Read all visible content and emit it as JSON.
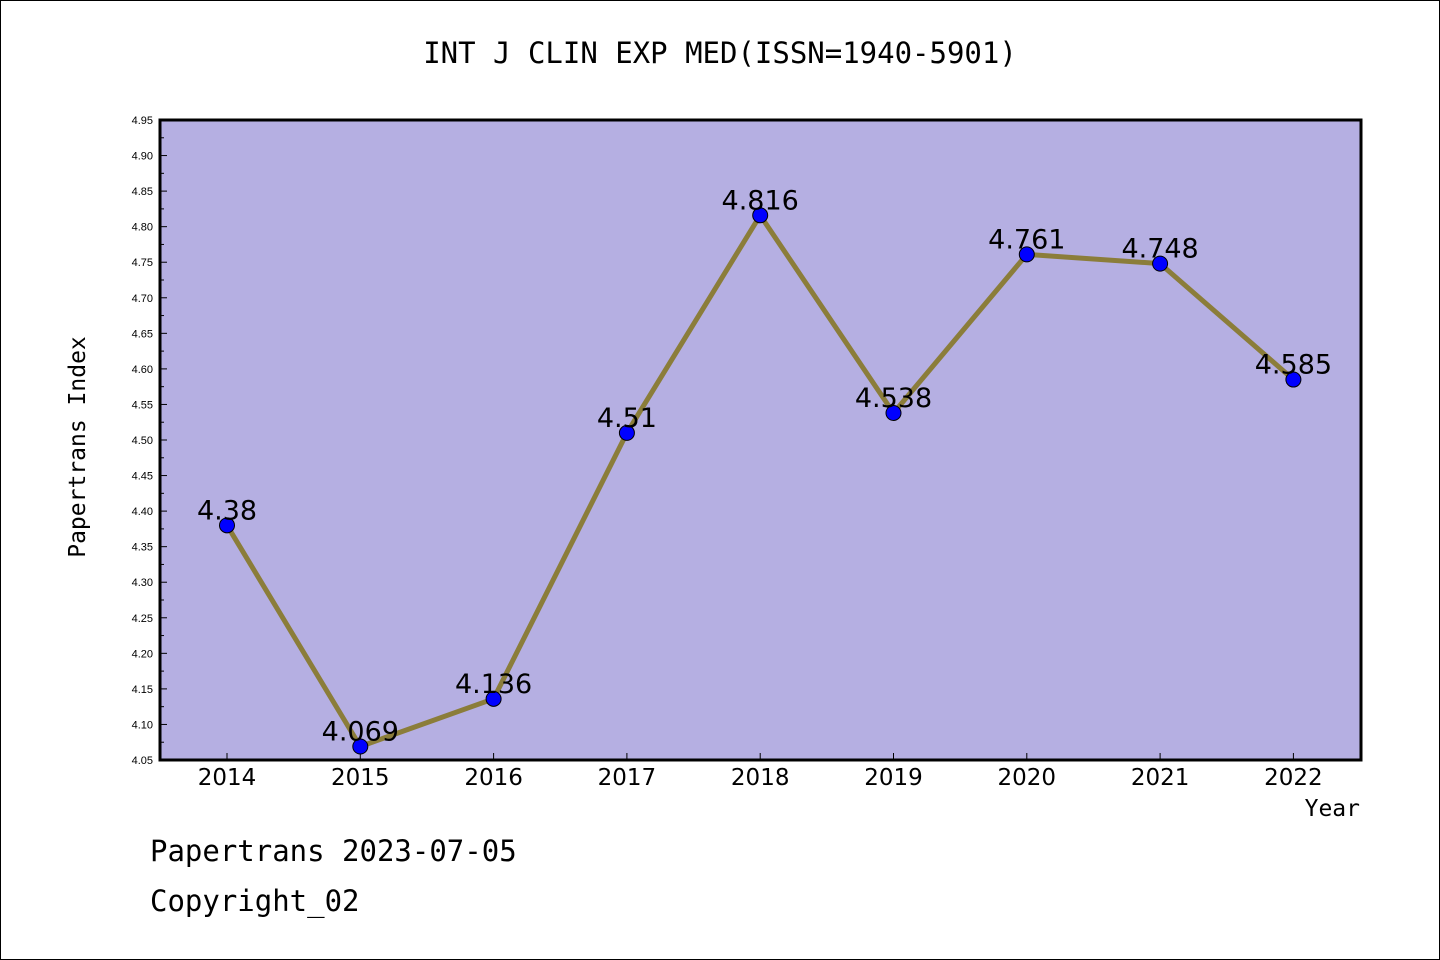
{
  "chart_data": {
    "type": "line",
    "title": "INT J CLIN EXP MED(ISSN=1940-5901)",
    "xlabel": "Year",
    "ylabel": "Papertrans Index",
    "x": [
      "2014",
      "2015",
      "2016",
      "2017",
      "2018",
      "2019",
      "2020",
      "2021",
      "2022"
    ],
    "series": [
      {
        "values": [
          4.38,
          4.069,
          4.136,
          4.51,
          4.816,
          4.538,
          4.761,
          4.748,
          4.585
        ],
        "labels": [
          "4.38",
          "4.069",
          "4.136",
          "4.51",
          "4.816",
          "4.538",
          "4.761",
          "4.748",
          "4.585"
        ]
      }
    ],
    "ylim": [
      4.05,
      4.95
    ],
    "yticks": [
      "4.05",
      "4.10",
      "4.15",
      "4.20",
      "4.25",
      "4.30",
      "4.35",
      "4.40",
      "4.45",
      "4.50",
      "4.55",
      "4.60",
      "4.65",
      "4.70",
      "4.75",
      "4.80",
      "4.85",
      "4.90",
      "4.95"
    ],
    "grid": false,
    "colors": {
      "plot_background": "#b5afe2",
      "line": "#8b7d3a",
      "marker": "#0000ff"
    }
  },
  "footer": {
    "line1": "Papertrans 2023-07-05",
    "line2": "Copyright_02"
  }
}
